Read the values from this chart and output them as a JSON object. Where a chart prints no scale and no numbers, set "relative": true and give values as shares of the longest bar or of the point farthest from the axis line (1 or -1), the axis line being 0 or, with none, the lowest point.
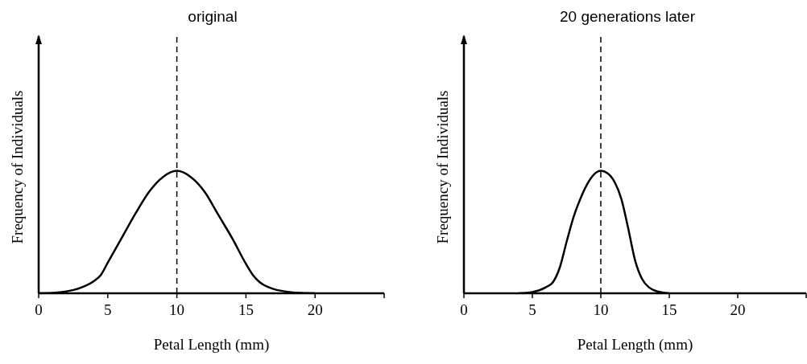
{
  "chart_data": [
    {
      "type": "line",
      "title": "original",
      "xlabel": "Petal Length (mm)",
      "ylabel": "Frequency of Individuals",
      "relative": true,
      "marker": "none",
      "xlim": [
        0,
        25
      ],
      "xticks": [
        0,
        5,
        10,
        15,
        20,
        {
          "value": 25,
          "label": null
        }
      ],
      "ref_lines": [
        {
          "axis": "x",
          "value": 10,
          "label": null,
          "color": "#000000",
          "line_style": "dashed"
        }
      ],
      "series": [
        {
          "color": "#000000",
          "x": [
            0,
            1,
            2,
            3,
            4,
            4.5,
            5,
            6,
            7,
            8,
            9,
            10,
            11,
            12,
            13,
            14,
            15,
            15.5,
            16,
            17,
            18,
            19,
            20
          ],
          "values": [
            0,
            0.003,
            0.015,
            0.043,
            0.1,
            0.15,
            0.25,
            0.45,
            0.65,
            0.83,
            0.95,
            1,
            0.95,
            0.83,
            0.64,
            0.45,
            0.24,
            0.15,
            0.09,
            0.035,
            0.012,
            0.003,
            0
          ]
        }
      ]
    },
    {
      "type": "line",
      "title": "20 generations later",
      "xlabel": "Petal Length (mm)",
      "ylabel": "Frequency of Individuals",
      "relative": true,
      "marker": "none",
      "xlim": [
        0,
        25
      ],
      "xticks": [
        0,
        5,
        10,
        15,
        20,
        {
          "value": 25,
          "label": null
        }
      ],
      "ref_lines": [
        {
          "axis": "x",
          "value": 10,
          "label": null,
          "color": "#000000",
          "line_style": "dashed"
        }
      ],
      "series": [
        {
          "color": "#000000",
          "x": [
            4,
            5,
            6,
            6.5,
            7,
            7.5,
            8,
            8.5,
            9,
            9.5,
            10,
            10.5,
            11,
            11.5,
            12,
            12.5,
            13,
            13.5,
            14,
            15
          ],
          "values": [
            0,
            0.01,
            0.05,
            0.09,
            0.21,
            0.42,
            0.62,
            0.77,
            0.89,
            0.97,
            1,
            0.98,
            0.91,
            0.77,
            0.53,
            0.27,
            0.12,
            0.05,
            0.02,
            0
          ]
        }
      ]
    }
  ]
}
